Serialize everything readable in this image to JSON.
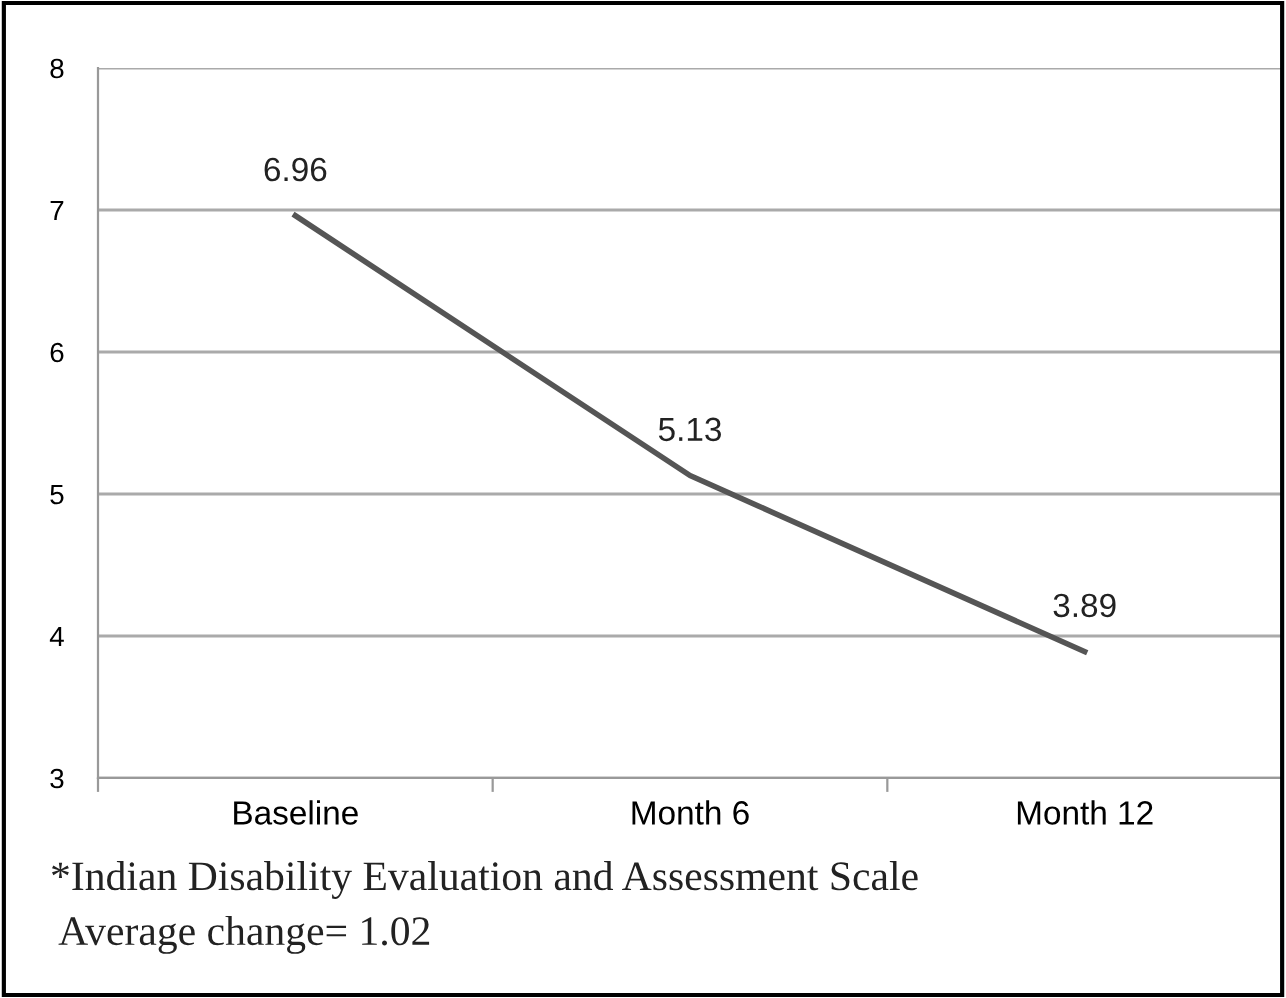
{
  "chart_data": {
    "type": "line",
    "categories": [
      "Baseline",
      "Month 6",
      "Month 12"
    ],
    "series": [
      {
        "color": "#555555",
        "values": [
          6.96,
          5.13,
          3.89
        ]
      }
    ],
    "ylim": [
      3,
      8
    ],
    "yticks": [
      3,
      4,
      5,
      6,
      7,
      8
    ],
    "grid": "y",
    "data_labels": true,
    "marker": "none",
    "line_style": "solid",
    "annotations": [
      "*Indian Disability Evaluation and Assessment Scale",
      " Average change= 1.02"
    ]
  }
}
